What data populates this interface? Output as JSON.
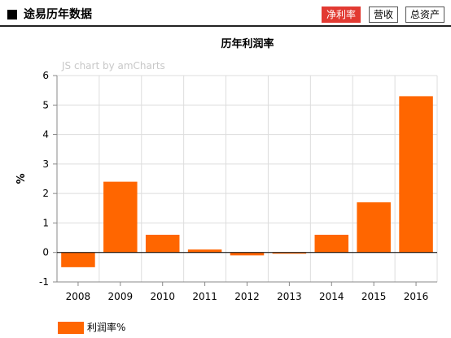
{
  "header": {
    "title": "途易历年数据",
    "tabs": [
      {
        "label": "净利率",
        "active": true
      },
      {
        "label": "营收",
        "active": false
      },
      {
        "label": "总资产",
        "active": false
      }
    ]
  },
  "watermark": "JS chart by amCharts",
  "colors": {
    "bar": "#ff6600",
    "tab_active": "#e23a32",
    "grid": "#dddddd",
    "axis": "#888888"
  },
  "chart_data": {
    "type": "bar",
    "title": "历年利润率",
    "xlabel": "",
    "ylabel": "%",
    "categories": [
      "2008",
      "2009",
      "2010",
      "2011",
      "2012",
      "2013",
      "2014",
      "2015",
      "2016"
    ],
    "series": [
      {
        "name": "利润率%",
        "values": [
          -0.5,
          2.4,
          0.6,
          0.1,
          -0.1,
          -0.02,
          0.6,
          1.7,
          5.3
        ]
      }
    ],
    "ylim": [
      -1,
      6
    ],
    "yticks": [
      -1,
      0,
      1,
      2,
      3,
      4,
      5,
      6
    ],
    "grid": true,
    "legend_position": "bottom-left"
  }
}
